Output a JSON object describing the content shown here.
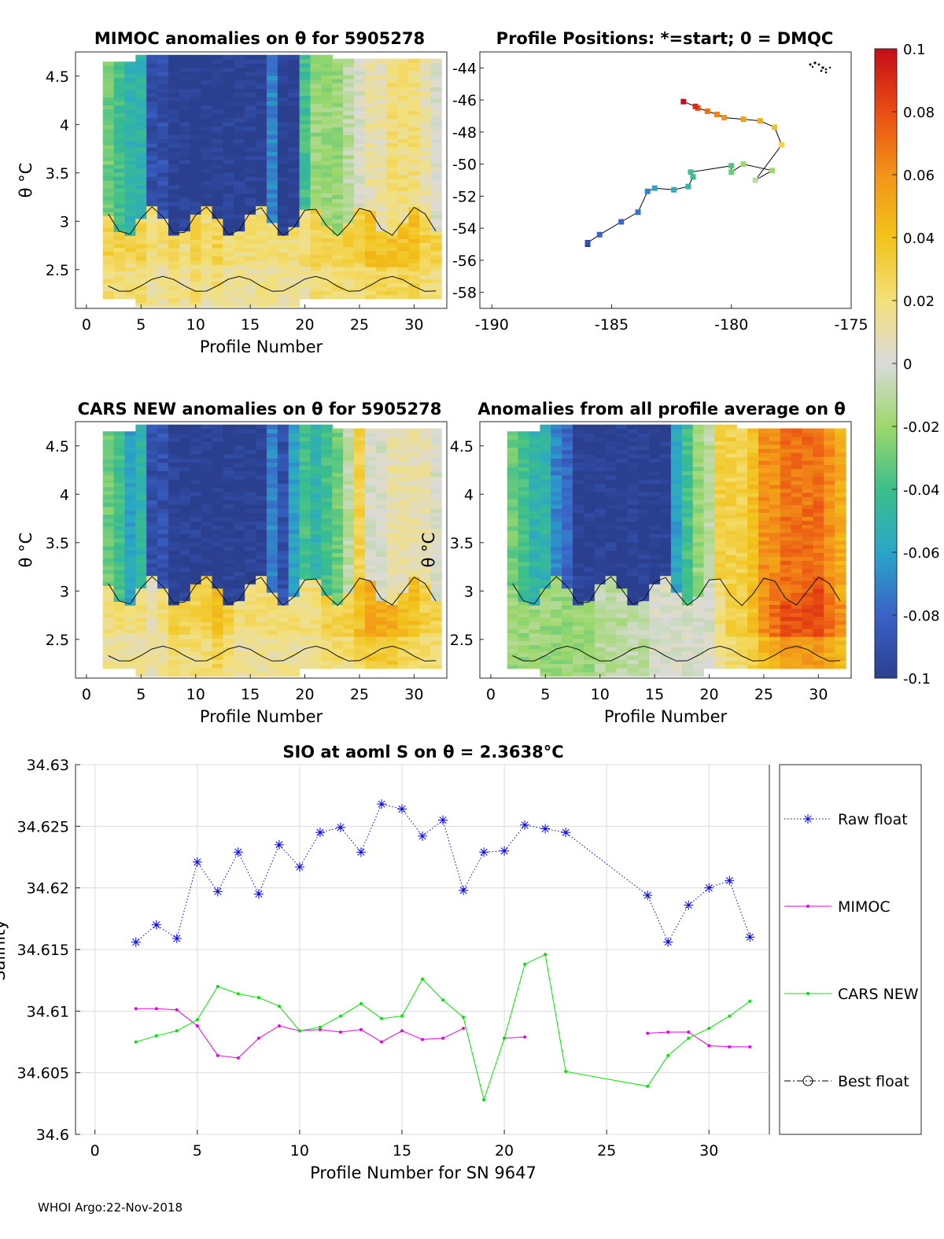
{
  "footer": "WHOI Argo:22-Nov-2018",
  "colorbar": {
    "ticks": [
      "0.1",
      "0.08",
      "0.06",
      "0.04",
      "0.02",
      "0",
      "-0.02",
      "-0.04",
      "-0.06",
      "-0.08",
      "-0.1"
    ],
    "stops": [
      "#2b3f8f",
      "#3a62c8",
      "#2aa6c9",
      "#3cbf8a",
      "#9dd86b",
      "#dadada",
      "#f3e07a",
      "#f2c31a",
      "#f39419",
      "#ea4d12",
      "#c40d19"
    ]
  },
  "panels": {
    "mimoc": {
      "title": "MIMOC anomalies on θ  for 5905278",
      "xlabel": "Profile Number",
      "ylabel": "θ °C",
      "xticks": [
        "0",
        "5",
        "10",
        "15",
        "20",
        "25",
        "30"
      ],
      "yticks": [
        "4.5",
        "4",
        "3.5",
        "3",
        "2.5"
      ]
    },
    "positions": {
      "title": "Profile Positions: *=start; 0 = DMQC",
      "xticks": [
        "-190",
        "-185",
        "-180",
        "-175"
      ],
      "yticks": [
        "-44",
        "-46",
        "-48",
        "-50",
        "-52",
        "-54",
        "-56",
        "-58"
      ]
    },
    "cars": {
      "title": "CARS NEW anomalies on θ for 5905278",
      "xlabel": "Profile Number",
      "ylabel": "θ °C",
      "xticks": [
        "0",
        "5",
        "10",
        "15",
        "20",
        "25",
        "30"
      ],
      "yticks": [
        "4.5",
        "4",
        "3.5",
        "3",
        "2.5"
      ]
    },
    "average": {
      "title": "Anomalies from all profile average on θ",
      "xlabel": "Profile Number",
      "ylabel": "θ °C",
      "xticks": [
        "0",
        "5",
        "10",
        "15",
        "20",
        "25",
        "30"
      ],
      "yticks": [
        "4.5",
        "4",
        "3.5",
        "3",
        "2.5"
      ]
    }
  },
  "chart_data": [
    {
      "type": "heatmap",
      "title": "MIMOC anomalies on θ  for 5905278",
      "xlabel": "Profile Number",
      "ylabel": "θ °C",
      "xlim": [
        -1,
        33
      ],
      "ylim": [
        2.1,
        4.75
      ],
      "profiles": [
        2,
        3,
        4,
        5,
        6,
        7,
        8,
        9,
        10,
        11,
        12,
        13,
        14,
        15,
        16,
        17,
        18,
        19,
        20,
        21,
        22,
        23,
        24,
        25,
        26,
        27,
        28,
        29,
        30,
        31,
        32
      ],
      "anomaly_by_profile_upper": [
        -0.03,
        -0.04,
        -0.05,
        -0.05,
        -0.09,
        -0.09,
        -0.1,
        -0.1,
        -0.1,
        -0.1,
        -0.1,
        -0.1,
        -0.1,
        -0.1,
        -0.1,
        -0.07,
        -0.1,
        -0.1,
        -0.04,
        -0.02,
        -0.02,
        -0.02,
        -0.01,
        0,
        0.01,
        0.01,
        0.02,
        0.02,
        0.02,
        0.01,
        0.0
      ],
      "anomaly_by_profile_lower": [
        0.03,
        0.03,
        0.03,
        0.03,
        0.02,
        0.02,
        0.03,
        0.02,
        0.03,
        0.02,
        0.03,
        0.02,
        0.02,
        0.02,
        0.02,
        0.02,
        0.02,
        0.02,
        0.02,
        0.03,
        0.03,
        0.03,
        0.03,
        0.03,
        0.04,
        0.04,
        0.04,
        0.04,
        0.04,
        0.03,
        0.03
      ]
    },
    {
      "type": "scatter",
      "title": "Profile Positions: *=start; 0 = DMQC",
      "xlim": [
        -190.5,
        -175
      ],
      "ylim": [
        -59,
        -43
      ],
      "lon": [
        -186,
        -186,
        -185.5,
        -184.6,
        -183.9,
        -183.5,
        -183.2,
        -182.4,
        -181.8,
        -181.6,
        -181.7,
        -180,
        -180,
        -179.5,
        -178.3,
        -179,
        -177.9,
        -178.2,
        -178.8,
        -179.5,
        -180.3,
        -180.6,
        -181,
        -181.4,
        -181.5,
        -182
      ],
      "lat": [
        -55,
        -54.9,
        -54.4,
        -53.6,
        -53,
        -51.7,
        -51.5,
        -51.6,
        -51.4,
        -50.8,
        -50.5,
        -50.1,
        -50.5,
        -50,
        -50.4,
        -51,
        -48.8,
        -47.7,
        -47.3,
        -47.2,
        -47.1,
        -46.9,
        -46.7,
        -46.5,
        -46.4,
        -46.1
      ],
      "anomaly": [
        -0.1,
        -0.09,
        -0.08,
        -0.08,
        -0.075,
        -0.07,
        -0.06,
        -0.055,
        -0.05,
        -0.04,
        -0.04,
        -0.035,
        -0.03,
        -0.02,
        -0.02,
        -0.01,
        0.03,
        0.04,
        0.05,
        0.055,
        0.06,
        0.065,
        0.07,
        0.08,
        0.09,
        0.1
      ]
    },
    {
      "type": "heatmap",
      "title": "CARS NEW anomalies on θ for 5905278",
      "xlabel": "Profile Number",
      "ylabel": "θ °C",
      "xlim": [
        -1,
        33
      ],
      "ylim": [
        2.1,
        4.75
      ],
      "profiles": [
        2,
        3,
        4,
        5,
        6,
        7,
        8,
        9,
        10,
        11,
        12,
        13,
        14,
        15,
        16,
        17,
        18,
        19,
        20,
        21,
        22,
        23,
        24,
        25,
        26,
        27,
        28,
        29,
        30,
        31,
        32
      ],
      "anomaly_by_profile_upper": [
        -0.03,
        -0.04,
        -0.06,
        -0.05,
        -0.09,
        -0.09,
        -0.1,
        -0.1,
        -0.1,
        -0.1,
        -0.1,
        -0.1,
        -0.1,
        -0.1,
        -0.1,
        -0.07,
        -0.09,
        -0.06,
        -0.04,
        -0.05,
        -0.04,
        -0.03,
        -0.01,
        0.03,
        0,
        0,
        0.01,
        0.01,
        0.01,
        0.01,
        0.0
      ],
      "anomaly_by_profile_lower": [
        0.02,
        0.02,
        0.02,
        0.02,
        0.01,
        0.02,
        0.03,
        0.03,
        0.03,
        0.03,
        0.04,
        0.03,
        0.02,
        0.02,
        0.02,
        0.02,
        0.02,
        0.02,
        0.02,
        0.02,
        0.03,
        0.03,
        0.03,
        0.04,
        0.05,
        0.05,
        0.05,
        0.04,
        0.04,
        0.03,
        0.03
      ]
    },
    {
      "type": "heatmap",
      "title": "Anomalies from all profile average on θ",
      "xlabel": "Profile Number",
      "ylabel": "θ °C",
      "xlim": [
        -1,
        33
      ],
      "ylim": [
        2.1,
        4.75
      ],
      "profiles": [
        2,
        3,
        4,
        5,
        6,
        7,
        8,
        9,
        10,
        11,
        12,
        13,
        14,
        15,
        16,
        17,
        18,
        19,
        20,
        21,
        22,
        23,
        24,
        25,
        26,
        27,
        28,
        29,
        30,
        31,
        32
      ],
      "anomaly_by_profile_upper": [
        -0.03,
        -0.04,
        -0.05,
        -0.05,
        -0.07,
        -0.08,
        -0.1,
        -0.1,
        -0.1,
        -0.1,
        -0.1,
        -0.1,
        -0.1,
        -0.1,
        -0.1,
        -0.06,
        -0.04,
        -0.02,
        -0.01,
        0.03,
        0.03,
        0.03,
        0.04,
        0.06,
        0.06,
        0.07,
        0.07,
        0.07,
        0.07,
        0.06,
        0.05
      ],
      "anomaly_by_profile_lower": [
        -0.02,
        -0.02,
        -0.02,
        -0.02,
        -0.02,
        -0.02,
        -0.02,
        -0.02,
        -0.01,
        -0.01,
        -0.01,
        -0.01,
        -0.01,
        0,
        0,
        0,
        0,
        0,
        0,
        0.02,
        0.03,
        0.03,
        0.04,
        0.06,
        0.07,
        0.08,
        0.08,
        0.08,
        0.08,
        0.07,
        0.06
      ]
    },
    {
      "type": "line",
      "title": "SIO at aoml S on θ = 2.3638°C",
      "xlabel": "Profile Number for SN 9647",
      "ylabel": "Salinity",
      "xlim": [
        -3,
        33
      ],
      "ylim": [
        34.6,
        34.63
      ],
      "xticks": [
        "0",
        "5",
        "10",
        "15",
        "20",
        "25",
        "30"
      ],
      "yticks": [
        "34.63",
        "34.625",
        "34.62",
        "34.615",
        "34.61",
        "34.605",
        "34.6"
      ],
      "grid": true,
      "legend_position": "right",
      "series": [
        {
          "name": "Raw float",
          "color": "#0000e6",
          "style": "dotted-star",
          "x": [
            2,
            3,
            4,
            5,
            6,
            7,
            8,
            9,
            10,
            11,
            12,
            13,
            14,
            15,
            16,
            17,
            18,
            19,
            20,
            21,
            22,
            23,
            27,
            28,
            29,
            30,
            31,
            32
          ],
          "y": [
            34.6156,
            34.617,
            34.6159,
            34.6221,
            34.6197,
            34.6229,
            34.6195,
            34.6235,
            34.6217,
            34.6245,
            34.6249,
            34.6229,
            34.6268,
            34.6264,
            34.6242,
            34.6255,
            34.6198,
            34.6229,
            34.623,
            34.6251,
            34.6248,
            34.6245,
            34.6194,
            34.6156,
            34.6186,
            34.62,
            34.6206,
            34.616
          ]
        },
        {
          "name": "MIMOC",
          "color": "#e600e6",
          "style": "solid-dot",
          "x": [
            2,
            3,
            4,
            5,
            6,
            7,
            8,
            9,
            10,
            11,
            12,
            13,
            14,
            15,
            16,
            17,
            18,
            null,
            20,
            21,
            null,
            27,
            28,
            29,
            30,
            31,
            32
          ],
          "y": [
            34.6102,
            34.6102,
            34.6101,
            34.6088,
            34.6064,
            34.6062,
            34.6078,
            34.6088,
            34.6084,
            34.6085,
            34.6083,
            34.6085,
            34.6075,
            34.6084,
            34.6077,
            34.6078,
            34.6086,
            null,
            34.6078,
            34.6079,
            null,
            34.6082,
            34.6083,
            34.6083,
            34.6072,
            34.6071,
            34.6071
          ]
        },
        {
          "name": "CARS NEW",
          "color": "#00e600",
          "style": "solid-dot",
          "x": [
            2,
            3,
            4,
            5,
            6,
            7,
            8,
            9,
            10,
            11,
            12,
            13,
            14,
            15,
            16,
            17,
            18,
            19,
            20,
            21,
            22,
            23,
            27,
            28,
            29,
            30,
            31,
            32
          ],
          "y": [
            34.6075,
            34.608,
            34.6084,
            34.6093,
            34.612,
            34.6114,
            34.6111,
            34.6104,
            34.6084,
            34.6087,
            34.6096,
            34.6106,
            34.6094,
            34.6096,
            34.6126,
            34.6109,
            34.6095,
            34.6028,
            34.6078,
            34.6138,
            34.6146,
            34.6051,
            34.6039,
            34.6064,
            34.6078,
            34.6086,
            34.6096,
            34.6108
          ]
        },
        {
          "name": "Best float",
          "color": "#000000",
          "style": "dashdot-circle",
          "x": [],
          "y": []
        }
      ]
    }
  ]
}
